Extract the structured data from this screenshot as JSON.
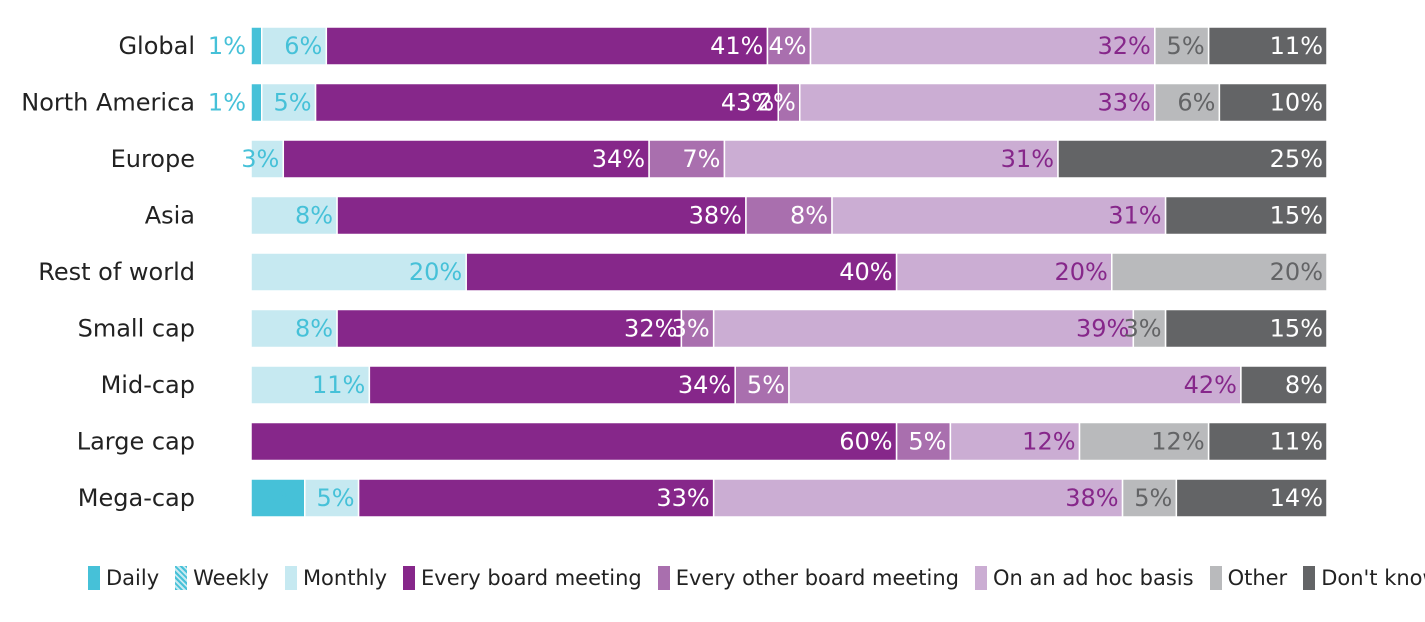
{
  "chart_data": {
    "type": "bar",
    "orientation": "horizontal",
    "stacked": true,
    "normalized_percent": true,
    "categories": [
      "Global",
      "North America",
      "Europe",
      "Asia",
      "Rest of world",
      "Small cap",
      "Mid-cap",
      "Large cap",
      "Mega-cap"
    ],
    "series": [
      {
        "name": "Daily",
        "color": "#46c1d8",
        "values": [
          1,
          1,
          0,
          0,
          0,
          0,
          0,
          0,
          5
        ]
      },
      {
        "name": "Weekly",
        "color": "#94d6e4",
        "values": [
          0,
          0,
          0,
          0,
          0,
          0,
          0,
          0,
          0
        ]
      },
      {
        "name": "Monthly",
        "color": "#c6e9f1",
        "values": [
          6,
          5,
          3,
          8,
          20,
          8,
          11,
          0,
          5
        ]
      },
      {
        "name": "Every board meeting",
        "color": "#86278a",
        "values": [
          41,
          43,
          34,
          38,
          40,
          32,
          34,
          60,
          33
        ]
      },
      {
        "name": "Every other board meeting",
        "color": "#a96fae",
        "values": [
          4,
          2,
          7,
          8,
          0,
          3,
          5,
          5,
          0
        ]
      },
      {
        "name": "On an ad hoc basis",
        "color": "#cbadd3",
        "values": [
          32,
          33,
          31,
          31,
          20,
          39,
          42,
          12,
          38
        ]
      },
      {
        "name": "Other",
        "color": "#b9babc",
        "values": [
          5,
          6,
          0,
          0,
          20,
          3,
          0,
          12,
          5
        ]
      },
      {
        "name": "Don't know",
        "color": "#636466",
        "values": [
          11,
          10,
          25,
          15,
          0,
          15,
          8,
          11,
          14
        ]
      }
    ],
    "label_colors": {
      "Daily": "#46c1d8",
      "Weekly": "#46c1d8",
      "Monthly": "#46c1d8",
      "Every board meeting": "#ffffff",
      "Every other board meeting": "#ffffff",
      "On an ad hoc basis": "#86278a",
      "Other": "#636466",
      "Don't know": "#ffffff"
    },
    "outside_labels": [
      {
        "category": "Global",
        "text": "1%",
        "color": "#46c1d8"
      },
      {
        "category": "North America",
        "text": "1%",
        "color": "#46c1d8"
      }
    ],
    "label_suffix": "%",
    "legend_position": "bottom",
    "grid": false
  }
}
